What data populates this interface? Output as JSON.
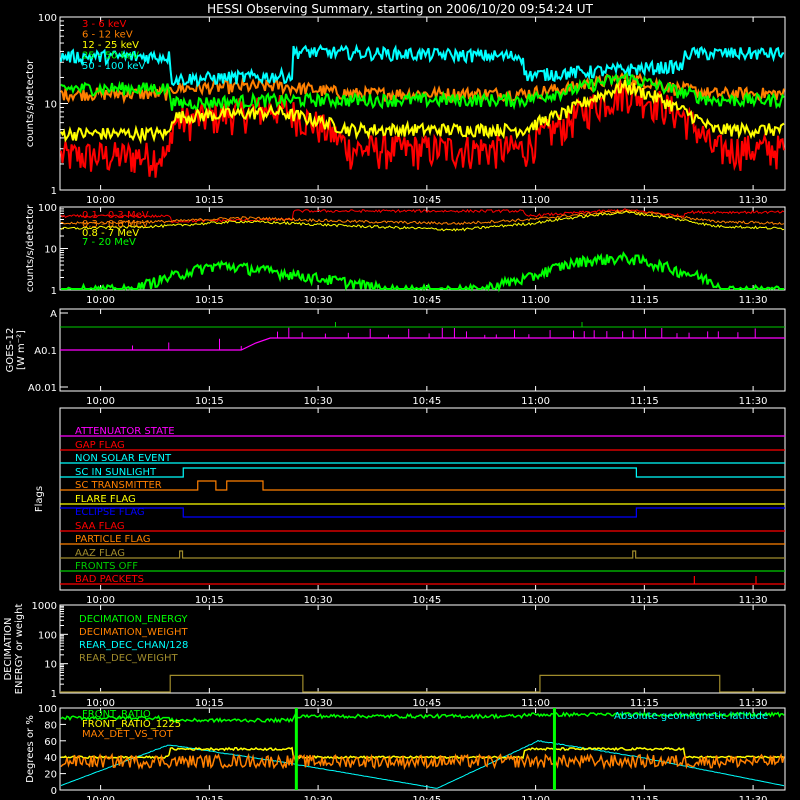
{
  "title": "HESSI Observing Summary, starting on 2006/10/20 09:54:24 UT",
  "time_ticks": [
    "10:00",
    "10:15",
    "10:30",
    "10:45",
    "11:00",
    "11:15",
    "11:30"
  ],
  "time_tick_minutes": [
    5.6,
    20.6,
    35.6,
    50.6,
    65.6,
    80.6,
    95.6
  ],
  "time_range_minutes": [
    0,
    100
  ],
  "panels": [
    {
      "id": "lightcurves",
      "ylabel": "counts/s/detector",
      "scale": "log",
      "ylim": [
        1,
        100
      ],
      "ytick_labels": [
        "1",
        "10",
        "100"
      ],
      "legend": [
        {
          "label": "3 - 6 keV",
          "color": "#ff0000"
        },
        {
          "label": "6 - 12 keV",
          "color": "#ff8000"
        },
        {
          "label": "12 - 25 keV",
          "color": "#ffff00"
        },
        {
          "label": "25 - 50 keV",
          "color": "#00ff00"
        },
        {
          "label": "50 - 100 keV",
          "color": "#00ffff"
        }
      ]
    },
    {
      "id": "gamma",
      "ylabel": "counts/s/detector",
      "scale": "log",
      "ylim": [
        1,
        100
      ],
      "ytick_labels": [
        "1",
        "10",
        "100"
      ],
      "legend": [
        {
          "label": "0.1 - 0.3 MeV",
          "color": "#ff0000"
        },
        {
          "label": "0.3 - 0.8 MeV",
          "color": "#ff8000"
        },
        {
          "label": "0.8 - 7 MeV",
          "color": "#ffff00"
        },
        {
          "label": "7 - 20 MeV",
          "color": "#00ff00"
        }
      ]
    },
    {
      "id": "goes",
      "ylabel": "GOES-12",
      "ylabel2": "[W m⁻²]",
      "ytick_labels": [
        "A",
        "A0.1",
        "A0.01"
      ]
    },
    {
      "id": "flags",
      "ylabel": "Flags",
      "flags": [
        {
          "label": "ATTENUATOR STATE",
          "color": "#ff00ff"
        },
        {
          "label": "GAP FLAG",
          "color": "#ff0000"
        },
        {
          "label": "NON SOLAR EVENT",
          "color": "#00ffff"
        },
        {
          "label": "SC IN SUNLIGHT",
          "color": "#00ffff"
        },
        {
          "label": "SC TRANSMITTER",
          "color": "#ff8000"
        },
        {
          "label": "FLARE FLAG",
          "color": "#ffff00"
        },
        {
          "label": "ECLIPSE FLAG",
          "color": "#0000ff"
        },
        {
          "label": "SAA FLAG",
          "color": "#ff0000"
        },
        {
          "label": "PARTICLE FLAG",
          "color": "#ff8000"
        },
        {
          "label": "AAZ FLAG",
          "color": "#a08c2c"
        },
        {
          "label": "FRONTS OFF",
          "color": "#00cc00"
        },
        {
          "label": "BAD PACKETS",
          "color": "#ff0000"
        }
      ]
    },
    {
      "id": "decimation",
      "ylabel": "DECIMATION",
      "ylabel2": "ENERGY or weight",
      "scale": "log",
      "ylim": [
        1,
        1000
      ],
      "ytick_labels": [
        "1",
        "10",
        "100",
        "1000"
      ],
      "legend": [
        {
          "label": "DECIMATION_ENERGY",
          "color": "#00ff00"
        },
        {
          "label": "DECIMATION_WEIGHT",
          "color": "#ff8000"
        },
        {
          "label": "REAR_DEC_CHAN/128",
          "color": "#00ffff"
        },
        {
          "label": "REAR_DEC_WEIGHT",
          "color": "#a08c2c"
        }
      ]
    },
    {
      "id": "ratios",
      "ylabel": "Degrees or %",
      "ylim": [
        0,
        100
      ],
      "ytick_labels": [
        "0",
        "20",
        "40",
        "60",
        "80",
        "100"
      ],
      "legend": [
        {
          "label": "FRONT_RATIO",
          "color": "#00ff00"
        },
        {
          "label": "FRONT_RATIO_1225",
          "color": "#ffff00"
        },
        {
          "label": "MAX_DET_VS_TOT",
          "color": "#ff8000"
        }
      ],
      "right_label": {
        "label": "Absolute geomagnetic latitude",
        "color": "#00ffff"
      }
    }
  ],
  "chart_data": [
    {
      "type": "line",
      "title": "HESSI Observing Summary, starting on 2006/10/20 09:54:24 UT",
      "ylabel": "counts/s/detector",
      "yscale": "log",
      "ylim": [
        1,
        100
      ],
      "x_unit": "minutes after 09:54:24 UT",
      "xlim": [
        0,
        100
      ],
      "series": [
        {
          "name": "3 - 6 keV",
          "x": [
            0,
            15.2,
            15.3,
            30,
            40,
            52,
            64,
            70,
            78,
            85,
            90,
            100
          ],
          "y": [
            2.5,
            2.5,
            6,
            9,
            3,
            3,
            3,
            6,
            14,
            8,
            3,
            3
          ]
        },
        {
          "name": "6 - 12 keV",
          "x": [
            0,
            15.2,
            15.3,
            30,
            40,
            52,
            64,
            70,
            78,
            85,
            90,
            100
          ],
          "y": [
            13,
            13,
            15,
            16,
            13,
            13,
            13,
            15,
            20,
            15,
            13,
            13
          ]
        },
        {
          "name": "12 - 25 keV",
          "x": [
            0,
            15.2,
            15.3,
            30,
            40,
            52,
            64,
            70,
            78,
            85,
            90,
            100
          ],
          "y": [
            4.5,
            4.5,
            7,
            8,
            5,
            5,
            5,
            8,
            16,
            9,
            5,
            5
          ]
        },
        {
          "name": "25 - 50 keV",
          "x": [
            0,
            15.2,
            15.3,
            30,
            40,
            52,
            64,
            70,
            78,
            85,
            90,
            100
          ],
          "y": [
            15,
            15,
            10,
            11,
            11,
            11,
            11,
            14,
            20,
            14,
            11,
            11
          ]
        },
        {
          "name": "50 - 100 keV",
          "x": [
            0,
            15.2,
            15.3,
            32,
            32.1,
            64,
            64.1,
            86,
            86.1,
            100
          ],
          "y": [
            35,
            35,
            19,
            21,
            40,
            35,
            21,
            27,
            38,
            38
          ]
        }
      ]
    },
    {
      "type": "line",
      "ylabel": "counts/s/detector",
      "yscale": "log",
      "ylim": [
        1,
        100
      ],
      "x_unit": "minutes after 09:54:24 UT",
      "xlim": [
        0,
        100
      ],
      "series": [
        {
          "name": "0.1 - 0.3 MeV",
          "x": [
            0,
            15.2,
            15.3,
            32,
            32.1,
            64,
            64.1,
            78,
            86,
            86.1,
            100
          ],
          "y": [
            60,
            60,
            45,
            50,
            80,
            80,
            60,
            85,
            60,
            75,
            75
          ]
        },
        {
          "name": "0.3 - 0.8 MeV",
          "x": [
            0,
            15,
            25,
            40,
            55,
            65,
            78,
            90,
            100
          ],
          "y": [
            40,
            45,
            55,
            45,
            40,
            50,
            80,
            45,
            40
          ]
        },
        {
          "name": "0.8 - 7 MeV",
          "x": [
            0,
            15,
            25,
            40,
            55,
            65,
            78,
            90,
            100
          ],
          "y": [
            30,
            35,
            45,
            35,
            28,
            40,
            75,
            35,
            30
          ]
        },
        {
          "name": "7 - 20 MeV",
          "x": [
            0,
            10,
            15,
            22,
            28,
            35,
            45,
            58,
            65,
            72,
            78,
            85,
            92,
            100
          ],
          "y": [
            1,
            1,
            2,
            4,
            3,
            2,
            1,
            1,
            2,
            5,
            6,
            3,
            1,
            1
          ]
        }
      ]
    },
    {
      "type": "line",
      "ylabel": "GOES-12",
      "x_unit": "minutes after 09:54:24 UT",
      "xlim": [
        0,
        100
      ],
      "series": [
        {
          "name": "GOES flux",
          "x": [
            0,
            25,
            27,
            30,
            35,
            60,
            100
          ],
          "y_level": [
            "A0.1",
            "A0.1",
            "A0.15",
            "A0.3",
            "A0.3",
            "A0.3",
            "A0.3"
          ]
        }
      ]
    }
  ]
}
